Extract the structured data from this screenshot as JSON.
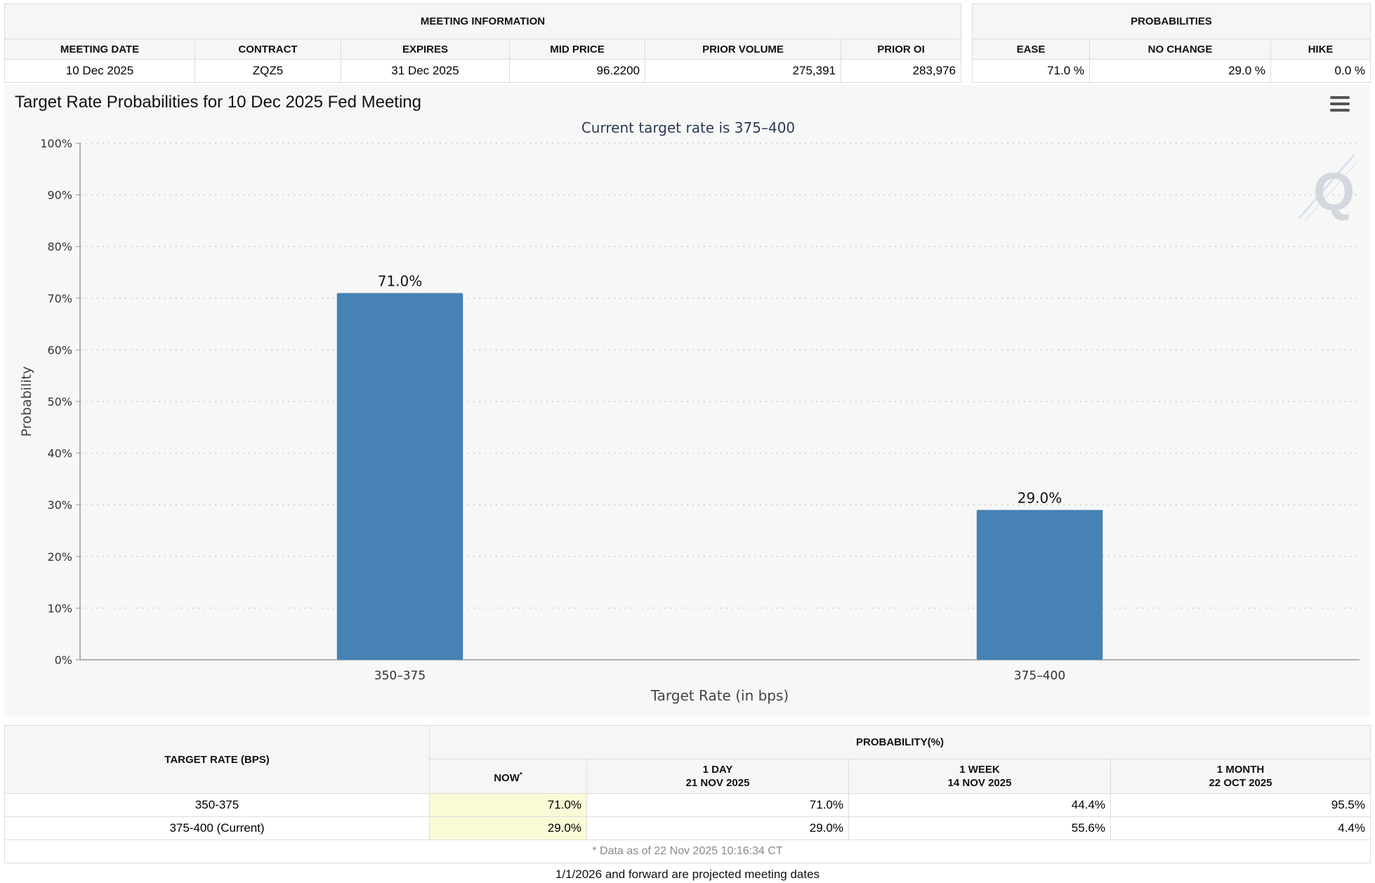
{
  "meeting_info": {
    "group_title": "MEETING INFORMATION",
    "columns": [
      "MEETING DATE",
      "CONTRACT",
      "EXPIRES",
      "MID PRICE",
      "PRIOR VOLUME",
      "PRIOR OI"
    ],
    "row": {
      "meeting_date": "10 Dec 2025",
      "contract": "ZQZ5",
      "expires": "31 Dec 2025",
      "mid_price": "96.2200",
      "prior_volume": "275,391",
      "prior_oi": "283,976"
    }
  },
  "probabilities": {
    "group_title": "PROBABILITIES",
    "columns": [
      "EASE",
      "NO CHANGE",
      "HIKE"
    ],
    "row": {
      "ease": "71.0 %",
      "no_change": "29.0 %",
      "hike": "0.0 %"
    }
  },
  "chart_panel": {
    "title": "Target Rate Probabilities for 10 Dec 2025 Fed Meeting",
    "menu_icon": "hamburger-menu-icon",
    "watermark_icon": "q-logo-icon"
  },
  "chart_data": {
    "type": "bar",
    "title": "Target Rate Probabilities for 10 Dec 2025 Fed Meeting",
    "subtitle": "Current target rate is 375–400",
    "xlabel": "Target Rate (in bps)",
    "ylabel": "Probability",
    "categories": [
      "350–375",
      "375–400"
    ],
    "values": [
      71.0,
      29.0
    ],
    "data_labels": [
      "71.0%",
      "29.0%"
    ],
    "ylim": [
      0,
      100
    ],
    "yticks": [
      "0%",
      "10%",
      "20%",
      "30%",
      "40%",
      "50%",
      "60%",
      "70%",
      "80%",
      "90%",
      "100%"
    ],
    "grid": true,
    "bar_color": "#4682b4"
  },
  "rates_table": {
    "target_header": "TARGET RATE (BPS)",
    "prob_header": "PROBABILITY(%)",
    "sub_headers": [
      {
        "line1": "NOW",
        "line2": ""
      },
      {
        "line1": "1 DAY",
        "line2": "21 NOV 2025"
      },
      {
        "line1": "1 WEEK",
        "line2": "14 NOV 2025"
      },
      {
        "line1": "1 MONTH",
        "line2": "22 OCT 2025"
      }
    ],
    "now_marker": "*",
    "rows": [
      {
        "rate": "350-375",
        "now": "71.0%",
        "day": "71.0%",
        "week": "44.4%",
        "month": "95.5%"
      },
      {
        "rate": "375-400 (Current)",
        "now": "29.0%",
        "day": "29.0%",
        "week": "55.6%",
        "month": "4.4%"
      }
    ],
    "footnote": "* Data as of 22 Nov 2025 10:16:34 CT",
    "highlight_color": "#fafad7"
  },
  "projected_note": "1/1/2026 and forward are projected meeting dates"
}
